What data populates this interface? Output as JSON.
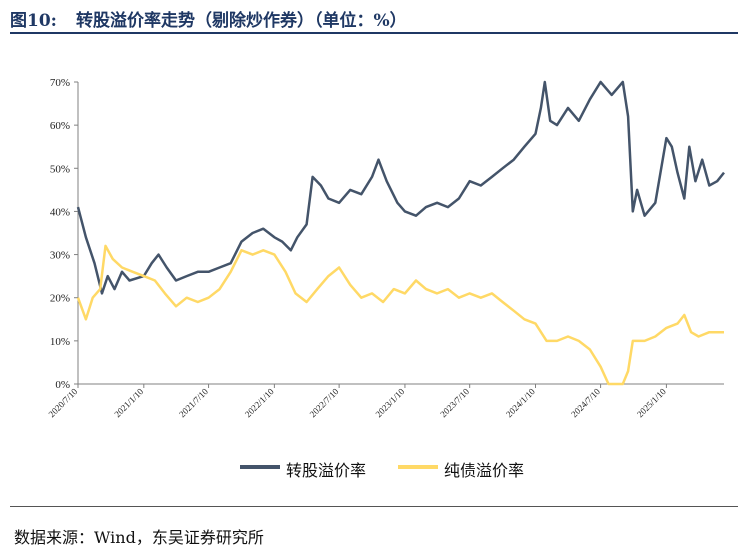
{
  "header": {
    "figure_label": "图10:",
    "title": "转股溢价率走势（剔除炒作券）（单位：%）"
  },
  "source": "数据来源：Wind，东吴证券研究所",
  "chart_data": {
    "type": "line",
    "xlabel": "",
    "ylabel": "",
    "ylim": [
      0,
      70
    ],
    "yticks": [
      "0%",
      "10%",
      "20%",
      "30%",
      "40%",
      "50%",
      "60%",
      "70%"
    ],
    "x_ticks": [
      "2020/7/10",
      "2021/1/10",
      "2021/7/10",
      "2022/1/10",
      "2022/7/10",
      "2023/1/10",
      "2023/7/10",
      "2024/1/10",
      "2024/7/10",
      "2025/1/10"
    ],
    "x_range": [
      "2020/7/10",
      "2025/6/20"
    ],
    "grid": false,
    "legend_position": "bottom",
    "series": [
      {
        "name": "转股溢价率",
        "color": "#44546a",
        "points": [
          [
            "2020/7/10",
            41
          ],
          [
            "2020/8/1",
            34
          ],
          [
            "2020/8/25",
            28
          ],
          [
            "2020/9/15",
            21
          ],
          [
            "2020/10/1",
            25
          ],
          [
            "2020/10/20",
            22
          ],
          [
            "2020/11/10",
            26
          ],
          [
            "2020/12/1",
            24
          ],
          [
            "2021/1/10",
            25
          ],
          [
            "2021/2/1",
            28
          ],
          [
            "2021/2/20",
            30
          ],
          [
            "2021/3/15",
            27
          ],
          [
            "2021/4/10",
            24
          ],
          [
            "2021/5/10",
            25
          ],
          [
            "2021/6/10",
            26
          ],
          [
            "2021/7/10",
            26
          ],
          [
            "2021/8/10",
            27
          ],
          [
            "2021/9/10",
            28
          ],
          [
            "2021/10/10",
            33
          ],
          [
            "2021/11/10",
            35
          ],
          [
            "2021/12/10",
            36
          ],
          [
            "2022/1/10",
            34
          ],
          [
            "2022/2/1",
            33
          ],
          [
            "2022/2/25",
            31
          ],
          [
            "2022/3/15",
            34
          ],
          [
            "2022/4/10",
            37
          ],
          [
            "2022/4/27",
            48
          ],
          [
            "2022/5/20",
            46
          ],
          [
            "2022/6/10",
            43
          ],
          [
            "2022/7/10",
            42
          ],
          [
            "2022/8/10",
            45
          ],
          [
            "2022/9/10",
            44
          ],
          [
            "2022/10/10",
            48
          ],
          [
            "2022/10/28",
            52
          ],
          [
            "2022/11/20",
            47
          ],
          [
            "2022/12/20",
            42
          ],
          [
            "2023/1/10",
            40
          ],
          [
            "2023/2/10",
            39
          ],
          [
            "2023/3/10",
            41
          ],
          [
            "2023/4/10",
            42
          ],
          [
            "2023/5/10",
            41
          ],
          [
            "2023/6/10",
            43
          ],
          [
            "2023/7/10",
            47
          ],
          [
            "2023/8/10",
            46
          ],
          [
            "2023/9/10",
            48
          ],
          [
            "2023/10/10",
            50
          ],
          [
            "2023/11/10",
            52
          ],
          [
            "2023/12/10",
            55
          ],
          [
            "2024/1/10",
            58
          ],
          [
            "2024/1/25",
            64
          ],
          [
            "2024/2/5",
            70
          ],
          [
            "2024/2/20",
            61
          ],
          [
            "2024/3/10",
            60
          ],
          [
            "2024/4/10",
            64
          ],
          [
            "2024/5/10",
            61
          ],
          [
            "2024/6/10",
            66
          ],
          [
            "2024/7/10",
            70
          ],
          [
            "2024/8/10",
            67
          ],
          [
            "2024/9/10",
            70
          ],
          [
            "2024/9/25",
            62
          ],
          [
            "2024/10/8",
            40
          ],
          [
            "2024/10/20",
            45
          ],
          [
            "2024/11/10",
            39
          ],
          [
            "2024/12/10",
            42
          ],
          [
            "2025/1/10",
            57
          ],
          [
            "2025/1/25",
            55
          ],
          [
            "2025/2/10",
            49
          ],
          [
            "2025/3/1",
            43
          ],
          [
            "2025/3/15",
            55
          ],
          [
            "2025/4/1",
            47
          ],
          [
            "2025/4/20",
            52
          ],
          [
            "2025/5/10",
            46
          ],
          [
            "2025/6/1",
            47
          ],
          [
            "2025/6/20",
            49
          ]
        ]
      },
      {
        "name": "纯债溢价率",
        "color": "#ffd966",
        "points": [
          [
            "2020/7/10",
            20
          ],
          [
            "2020/8/1",
            15
          ],
          [
            "2020/8/20",
            20
          ],
          [
            "2020/9/10",
            22
          ],
          [
            "2020/9/25",
            32
          ],
          [
            "2020/10/15",
            29
          ],
          [
            "2020/11/10",
            27
          ],
          [
            "2020/12/10",
            26
          ],
          [
            "2021/1/10",
            25
          ],
          [
            "2021/2/10",
            24
          ],
          [
            "2021/3/10",
            21
          ],
          [
            "2021/4/10",
            18
          ],
          [
            "2021/5/10",
            20
          ],
          [
            "2021/6/10",
            19
          ],
          [
            "2021/7/10",
            20
          ],
          [
            "2021/8/10",
            22
          ],
          [
            "2021/9/10",
            26
          ],
          [
            "2021/10/10",
            31
          ],
          [
            "2021/11/10",
            30
          ],
          [
            "2021/12/10",
            31
          ],
          [
            "2022/1/10",
            30
          ],
          [
            "2022/2/10",
            26
          ],
          [
            "2022/3/10",
            21
          ],
          [
            "2022/4/10",
            19
          ],
          [
            "2022/5/10",
            22
          ],
          [
            "2022/6/10",
            25
          ],
          [
            "2022/7/10",
            27
          ],
          [
            "2022/8/10",
            23
          ],
          [
            "2022/9/10",
            20
          ],
          [
            "2022/10/10",
            21
          ],
          [
            "2022/11/10",
            19
          ],
          [
            "2022/12/10",
            22
          ],
          [
            "2023/1/10",
            21
          ],
          [
            "2023/2/10",
            24
          ],
          [
            "2023/3/10",
            22
          ],
          [
            "2023/4/10",
            21
          ],
          [
            "2023/5/10",
            22
          ],
          [
            "2023/6/10",
            20
          ],
          [
            "2023/7/10",
            21
          ],
          [
            "2023/8/10",
            20
          ],
          [
            "2023/9/10",
            21
          ],
          [
            "2023/10/10",
            19
          ],
          [
            "2023/11/10",
            17
          ],
          [
            "2023/12/10",
            15
          ],
          [
            "2024/1/10",
            14
          ],
          [
            "2024/2/10",
            10
          ],
          [
            "2024/3/10",
            10
          ],
          [
            "2024/4/10",
            11
          ],
          [
            "2024/5/10",
            10
          ],
          [
            "2024/6/10",
            8
          ],
          [
            "2024/7/10",
            4
          ],
          [
            "2024/8/1",
            0
          ],
          [
            "2024/9/10",
            0
          ],
          [
            "2024/9/25",
            3
          ],
          [
            "2024/10/8",
            10
          ],
          [
            "2024/11/10",
            10
          ],
          [
            "2024/12/10",
            11
          ],
          [
            "2025/1/10",
            13
          ],
          [
            "2025/2/10",
            14
          ],
          [
            "2025/3/1",
            16
          ],
          [
            "2025/3/20",
            12
          ],
          [
            "2025/4/10",
            11
          ],
          [
            "2025/5/10",
            12
          ],
          [
            "2025/6/20",
            12
          ]
        ]
      }
    ]
  }
}
